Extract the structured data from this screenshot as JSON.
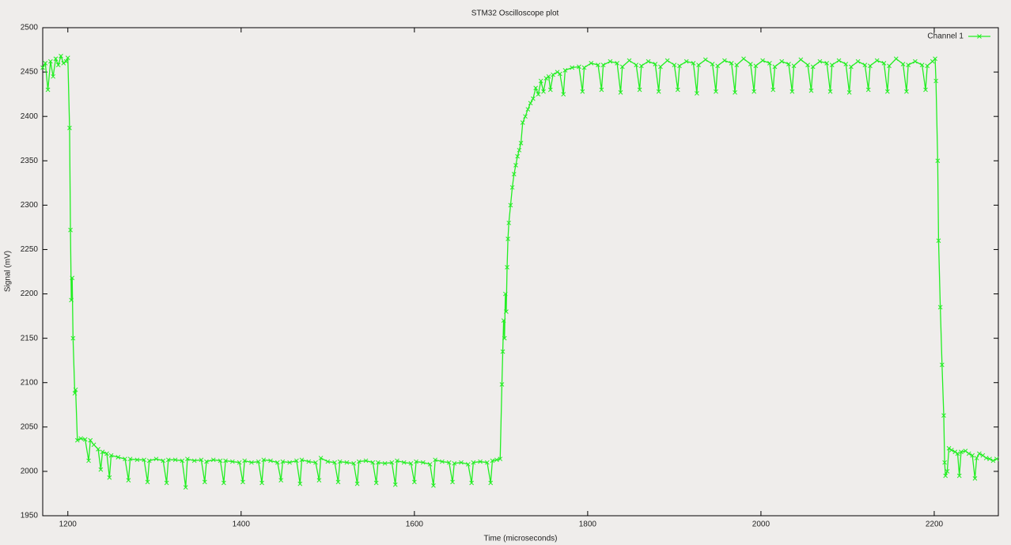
{
  "chart_data": {
    "type": "line",
    "title": "STM32 Oscilloscope plot",
    "x_label": "Time (microseconds)",
    "y_label": "Signal (mV)",
    "xlim": [
      1171,
      2274
    ],
    "xticks": [
      1200,
      1400,
      1600,
      1800,
      2000,
      2200
    ],
    "ylim": [
      1950,
      2500
    ],
    "yticks": [
      1950,
      2000,
      2050,
      2100,
      2150,
      2200,
      2250,
      2300,
      2350,
      2400,
      2450,
      2500
    ],
    "grid": false,
    "legend": "top-right",
    "series": [
      {
        "name": "Channel 1",
        "color": "#22ee22",
        "x": [
          1171,
          1174,
          1177,
          1180,
          1183,
          1186,
          1189,
          1192,
          1195,
          1198,
          1200,
          1202,
          1203,
          1204,
          1205,
          1206,
          1208,
          1209,
          1211,
          1215,
          1220,
          1224,
          1226,
          1230,
          1235,
          1238,
          1240,
          1245,
          1248,
          1250,
          1258,
          1266,
          1270,
          1272,
          1280,
          1288,
          1292,
          1294,
          1302,
          1310,
          1314,
          1316,
          1324,
          1332,
          1336,
          1338,
          1346,
          1354,
          1358,
          1360,
          1368,
          1376,
          1380,
          1382,
          1390,
          1398,
          1402,
          1404,
          1412,
          1420,
          1424,
          1426,
          1434,
          1442,
          1446,
          1448,
          1456,
          1464,
          1468,
          1470,
          1478,
          1486,
          1490,
          1492,
          1500,
          1508,
          1512,
          1514,
          1522,
          1530,
          1534,
          1536,
          1544,
          1552,
          1556,
          1558,
          1566,
          1574,
          1578,
          1580,
          1588,
          1596,
          1600,
          1602,
          1610,
          1618,
          1622,
          1624,
          1632,
          1640,
          1644,
          1646,
          1654,
          1662,
          1666,
          1668,
          1676,
          1684,
          1688,
          1690,
          1695,
          1699,
          1701,
          1702,
          1703,
          1704,
          1705,
          1706,
          1707,
          1708,
          1709,
          1711,
          1713,
          1715,
          1717,
          1719,
          1721,
          1723,
          1725,
          1728,
          1731,
          1734,
          1737,
          1740,
          1743,
          1746,
          1749,
          1752,
          1755,
          1757,
          1760,
          1765,
          1768,
          1772,
          1774,
          1782,
          1790,
          1794,
          1796,
          1804,
          1812,
          1816,
          1818,
          1826,
          1834,
          1838,
          1840,
          1848,
          1856,
          1860,
          1862,
          1870,
          1878,
          1882,
          1884,
          1892,
          1900,
          1904,
          1906,
          1914,
          1922,
          1926,
          1928,
          1936,
          1944,
          1948,
          1950,
          1958,
          1966,
          1970,
          1972,
          1980,
          1988,
          1992,
          1994,
          2002,
          2010,
          2014,
          2016,
          2024,
          2032,
          2036,
          2038,
          2046,
          2054,
          2058,
          2060,
          2068,
          2076,
          2080,
          2082,
          2090,
          2098,
          2102,
          2104,
          2112,
          2120,
          2124,
          2126,
          2134,
          2142,
          2146,
          2148,
          2156,
          2164,
          2168,
          2170,
          2178,
          2186,
          2190,
          2192,
          2198,
          2201,
          2202,
          2204,
          2205,
          2207,
          2209,
          2211,
          2212,
          2213,
          2215,
          2217,
          2220,
          2224,
          2227,
          2229,
          2231,
          2236,
          2240,
          2244,
          2247,
          2249,
          2252,
          2256,
          2260,
          2264,
          2268,
          2272
        ],
        "values": [
          2455,
          2460,
          2430,
          2462,
          2445,
          2465,
          2458,
          2468,
          2460,
          2462,
          2466,
          2387,
          2272,
          2193,
          2218,
          2150,
          2088,
          2092,
          2035,
          2037,
          2036,
          2012,
          2035,
          2030,
          2025,
          2002,
          2022,
          2020,
          1993,
          2018,
          2016,
          2014,
          1990,
          2014,
          2013,
          2013,
          1988,
          2012,
          2014,
          2012,
          1987,
          2013,
          2013,
          2012,
          1982,
          2014,
          2012,
          2013,
          1988,
          2011,
          2013,
          2012,
          1987,
          2012,
          2011,
          2010,
          1988,
          2012,
          2010,
          2011,
          1987,
          2013,
          2012,
          2010,
          1990,
          2011,
          2010,
          2012,
          1986,
          2013,
          2011,
          2010,
          1990,
          2015,
          2011,
          2010,
          1988,
          2011,
          2010,
          2009,
          1986,
          2011,
          2012,
          2010,
          1987,
          2010,
          2009,
          2010,
          1985,
          2012,
          2010,
          2009,
          1988,
          2011,
          2010,
          2008,
          1984,
          2013,
          2011,
          2010,
          1988,
          2009,
          2010,
          2008,
          1987,
          2010,
          2011,
          2010,
          1987,
          2012,
          2013,
          2014,
          2098,
          2135,
          2170,
          2150,
          2200,
          2180,
          2230,
          2262,
          2280,
          2300,
          2320,
          2335,
          2345,
          2355,
          2362,
          2370,
          2393,
          2400,
          2408,
          2415,
          2420,
          2432,
          2425,
          2440,
          2428,
          2443,
          2445,
          2430,
          2447,
          2450,
          2448,
          2425,
          2452,
          2455,
          2456,
          2428,
          2455,
          2460,
          2458,
          2430,
          2458,
          2462,
          2460,
          2427,
          2456,
          2463,
          2458,
          2430,
          2457,
          2462,
          2459,
          2428,
          2456,
          2463,
          2458,
          2430,
          2457,
          2462,
          2460,
          2426,
          2458,
          2464,
          2459,
          2428,
          2457,
          2463,
          2460,
          2427,
          2458,
          2465,
          2459,
          2428,
          2457,
          2463,
          2460,
          2430,
          2456,
          2462,
          2459,
          2428,
          2457,
          2464,
          2458,
          2429,
          2456,
          2462,
          2460,
          2428,
          2458,
          2463,
          2459,
          2427,
          2456,
          2462,
          2458,
          2430,
          2457,
          2463,
          2460,
          2428,
          2457,
          2465,
          2459,
          2428,
          2458,
          2462,
          2458,
          2430,
          2457,
          2462,
          2465,
          2440,
          2350,
          2260,
          2185,
          2120,
          2063,
          2010,
          1995,
          2000,
          2026,
          2024,
          2022,
          2020,
          1995,
          2022,
          2023,
          2020,
          2018,
          1992,
          2015,
          2020,
          2018,
          2015,
          2014,
          2012,
          2014
        ]
      }
    ]
  }
}
